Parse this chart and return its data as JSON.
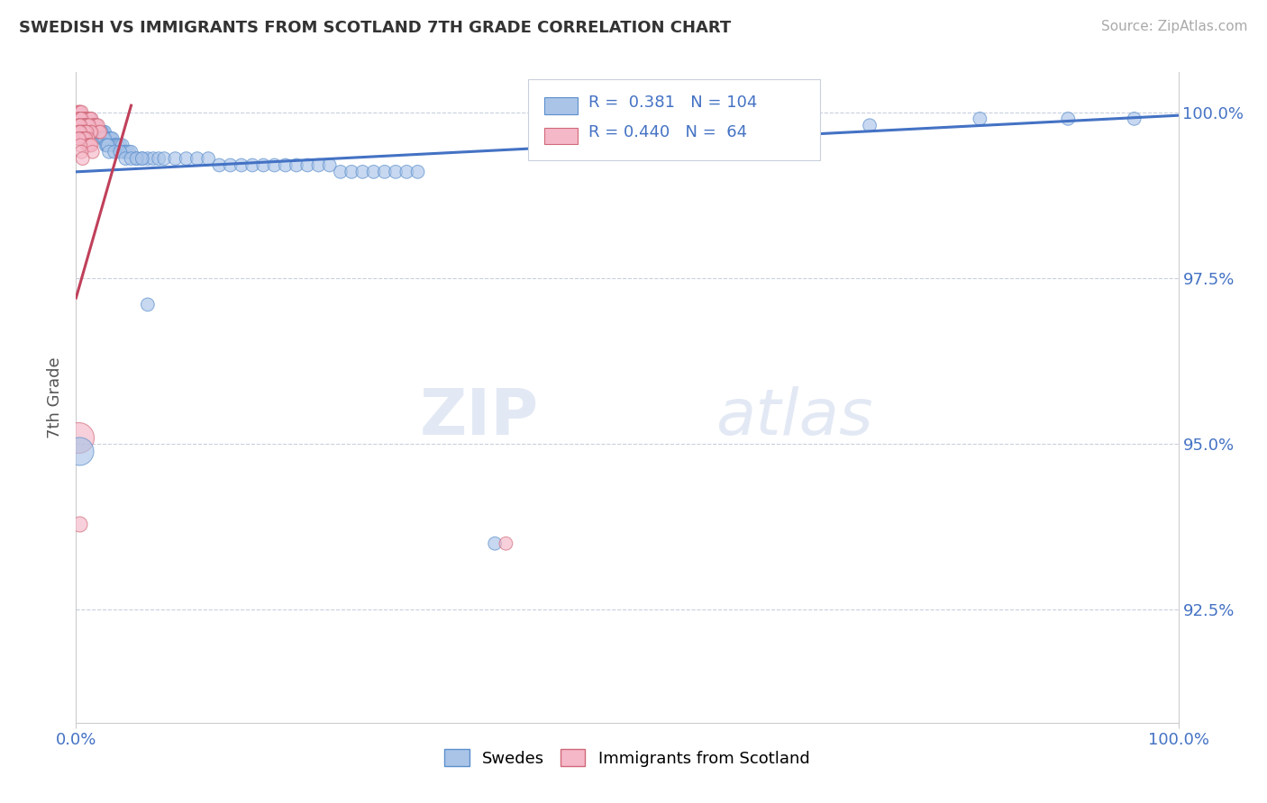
{
  "title": "SWEDISH VS IMMIGRANTS FROM SCOTLAND 7TH GRADE CORRELATION CHART",
  "source": "Source: ZipAtlas.com",
  "ylabel": "7th Grade",
  "xlim": [
    0,
    1.0
  ],
  "ylim": [
    0.908,
    1.006
  ],
  "ytick_vals": [
    0.925,
    0.95,
    0.975,
    1.0
  ],
  "ytick_labels": [
    "92.5%",
    "95.0%",
    "97.5%",
    "100.0%"
  ],
  "xtick_vals": [
    0.0,
    1.0
  ],
  "xtick_labels": [
    "0.0%",
    "100.0%"
  ],
  "legend_swedes_R": "0.381",
  "legend_swedes_N": "104",
  "legend_scotland_R": "0.440",
  "legend_scotland_N": "64",
  "legend_label1": "Swedes",
  "legend_label2": "Immigrants from Scotland",
  "color_swedes_fill": "#aac4e8",
  "color_swedes_edge": "#5b8fcc",
  "color_scotland_fill": "#f5b8c8",
  "color_scotland_edge": "#d06878",
  "color_line_swedes": "#4472c4",
  "color_line_scotland": "#c0405a",
  "background": "#ffffff",
  "swedes_line_x0": 0.0,
  "swedes_line_y0": 0.991,
  "swedes_line_x1": 1.0,
  "swedes_line_y1": 0.9995,
  "scotland_line_x0": 0.0,
  "scotland_line_y0": 0.972,
  "scotland_line_x1": 0.05,
  "scotland_line_y1": 1.001,
  "swedes_x": [
    0.005,
    0.007,
    0.008,
    0.009,
    0.01,
    0.011,
    0.012,
    0.013,
    0.014,
    0.015,
    0.016,
    0.017,
    0.018,
    0.019,
    0.02,
    0.021,
    0.022,
    0.023,
    0.024,
    0.025,
    0.026,
    0.027,
    0.028,
    0.029,
    0.03,
    0.031,
    0.032,
    0.033,
    0.034,
    0.035,
    0.036,
    0.037,
    0.038,
    0.04,
    0.042,
    0.044,
    0.046,
    0.048,
    0.05,
    0.055,
    0.06,
    0.065,
    0.07,
    0.075,
    0.08,
    0.09,
    0.1,
    0.11,
    0.12,
    0.13,
    0.14,
    0.15,
    0.16,
    0.17,
    0.18,
    0.19,
    0.2,
    0.21,
    0.22,
    0.23,
    0.24,
    0.25,
    0.26,
    0.27,
    0.28,
    0.29,
    0.3,
    0.31,
    0.008,
    0.009,
    0.01,
    0.011,
    0.012,
    0.013,
    0.014,
    0.015,
    0.016,
    0.017,
    0.018,
    0.019,
    0.02,
    0.021,
    0.022,
    0.023,
    0.024,
    0.025,
    0.026,
    0.027,
    0.028,
    0.029,
    0.03,
    0.035,
    0.04,
    0.045,
    0.05,
    0.055,
    0.06,
    0.065,
    0.38,
    0.96,
    0.65,
    0.72,
    0.82,
    0.9
  ],
  "swedes_y": [
    0.999,
    0.999,
    0.999,
    0.999,
    0.998,
    0.998,
    0.998,
    0.998,
    0.998,
    0.998,
    0.998,
    0.998,
    0.998,
    0.997,
    0.997,
    0.997,
    0.997,
    0.997,
    0.997,
    0.997,
    0.997,
    0.996,
    0.996,
    0.996,
    0.996,
    0.996,
    0.996,
    0.996,
    0.995,
    0.995,
    0.995,
    0.995,
    0.995,
    0.995,
    0.995,
    0.994,
    0.994,
    0.994,
    0.994,
    0.993,
    0.993,
    0.993,
    0.993,
    0.993,
    0.993,
    0.993,
    0.993,
    0.993,
    0.993,
    0.992,
    0.992,
    0.992,
    0.992,
    0.992,
    0.992,
    0.992,
    0.992,
    0.992,
    0.992,
    0.992,
    0.991,
    0.991,
    0.991,
    0.991,
    0.991,
    0.991,
    0.991,
    0.991,
    0.999,
    0.999,
    0.999,
    0.999,
    0.999,
    0.999,
    0.998,
    0.998,
    0.998,
    0.998,
    0.998,
    0.997,
    0.997,
    0.997,
    0.997,
    0.997,
    0.996,
    0.996,
    0.996,
    0.995,
    0.995,
    0.995,
    0.994,
    0.994,
    0.994,
    0.993,
    0.993,
    0.993,
    0.993,
    0.971,
    0.935,
    0.999,
    0.997,
    0.998,
    0.999,
    0.999
  ],
  "swedes_sizes": [
    40,
    40,
    40,
    40,
    40,
    40,
    40,
    40,
    40,
    40,
    40,
    40,
    40,
    40,
    40,
    40,
    40,
    40,
    40,
    40,
    40,
    40,
    40,
    40,
    40,
    40,
    40,
    40,
    40,
    40,
    40,
    40,
    40,
    40,
    40,
    40,
    40,
    40,
    40,
    40,
    40,
    40,
    40,
    40,
    40,
    40,
    40,
    40,
    40,
    40,
    40,
    40,
    40,
    40,
    40,
    40,
    40,
    40,
    40,
    40,
    40,
    40,
    40,
    40,
    40,
    40,
    40,
    40,
    40,
    40,
    40,
    40,
    40,
    40,
    40,
    40,
    40,
    40,
    40,
    40,
    40,
    40,
    40,
    40,
    40,
    40,
    40,
    40,
    40,
    40,
    40,
    40,
    40,
    40,
    40,
    40,
    40,
    40,
    40,
    40,
    40,
    40,
    40,
    40
  ],
  "scotland_x": [
    0.002,
    0.003,
    0.004,
    0.005,
    0.006,
    0.007,
    0.008,
    0.009,
    0.01,
    0.011,
    0.012,
    0.013,
    0.014,
    0.015,
    0.016,
    0.017,
    0.018,
    0.019,
    0.02,
    0.021,
    0.022,
    0.002,
    0.003,
    0.004,
    0.005,
    0.006,
    0.007,
    0.008,
    0.009,
    0.01,
    0.011,
    0.012,
    0.013,
    0.014,
    0.002,
    0.003,
    0.004,
    0.005,
    0.006,
    0.007,
    0.008,
    0.009,
    0.01,
    0.011,
    0.002,
    0.003,
    0.004,
    0.005,
    0.006,
    0.007,
    0.008,
    0.009,
    0.01,
    0.011,
    0.012,
    0.013,
    0.014,
    0.015,
    0.002,
    0.003,
    0.004,
    0.005,
    0.006,
    0.39
  ],
  "scotland_y": [
    1.0,
    1.0,
    1.0,
    1.0,
    0.999,
    0.999,
    0.999,
    0.999,
    0.999,
    0.999,
    0.999,
    0.999,
    0.999,
    0.998,
    0.998,
    0.998,
    0.998,
    0.998,
    0.998,
    0.997,
    0.997,
    0.999,
    0.999,
    0.999,
    0.999,
    0.998,
    0.998,
    0.998,
    0.998,
    0.998,
    0.998,
    0.998,
    0.997,
    0.997,
    0.998,
    0.998,
    0.998,
    0.997,
    0.997,
    0.997,
    0.997,
    0.997,
    0.997,
    0.996,
    0.997,
    0.997,
    0.997,
    0.996,
    0.996,
    0.996,
    0.996,
    0.996,
    0.995,
    0.995,
    0.995,
    0.995,
    0.995,
    0.994,
    0.996,
    0.996,
    0.995,
    0.994,
    0.993,
    0.935
  ],
  "scotland_sizes": [
    40,
    40,
    40,
    40,
    40,
    40,
    40,
    40,
    40,
    40,
    40,
    40,
    40,
    40,
    40,
    40,
    40,
    40,
    40,
    40,
    40,
    40,
    40,
    40,
    40,
    40,
    40,
    40,
    40,
    40,
    40,
    40,
    40,
    40,
    40,
    40,
    40,
    40,
    40,
    40,
    40,
    40,
    40,
    40,
    40,
    40,
    40,
    40,
    40,
    40,
    40,
    40,
    40,
    40,
    40,
    40,
    40,
    40,
    40,
    40,
    40,
    40,
    40,
    40
  ]
}
